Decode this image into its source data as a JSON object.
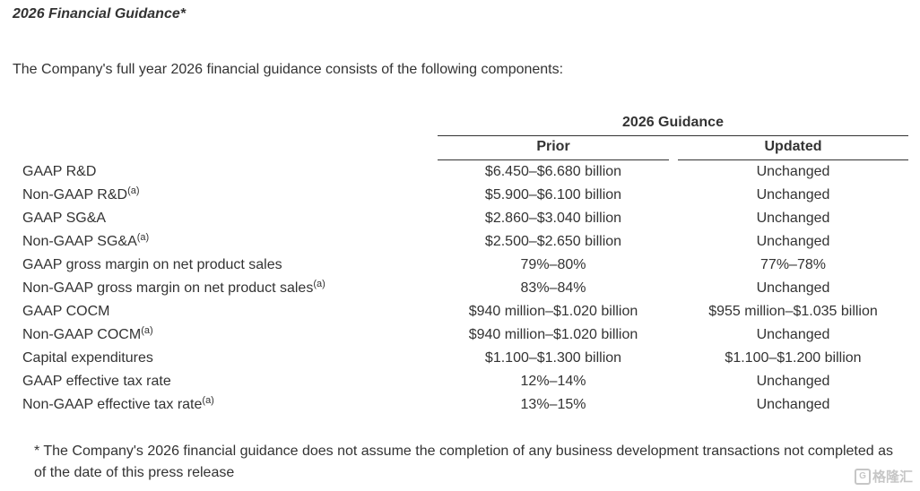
{
  "title": "2026 Financial Guidance*",
  "intro": "The Company's full year 2026 financial guidance consists of the following components:",
  "table": {
    "group_header": "2026 Guidance",
    "col_prior": "Prior",
    "col_updated": "Updated",
    "footnote_marker": "(a)",
    "rows": [
      {
        "label": "GAAP R&D",
        "note": "",
        "prior": "$6.450–$6.680 billion",
        "updated": "Unchanged"
      },
      {
        "label": "Non-GAAP R&D",
        "note": "(a)",
        "prior": "$5.900–$6.100 billion",
        "updated": "Unchanged"
      },
      {
        "label": "GAAP SG&A",
        "note": "",
        "prior": "$2.860–$3.040 billion",
        "updated": "Unchanged"
      },
      {
        "label": "Non-GAAP SG&A",
        "note": "(a)",
        "prior": "$2.500–$2.650 billion",
        "updated": "Unchanged"
      },
      {
        "label": "GAAP gross margin on net product sales",
        "note": "",
        "prior": "79%–80%",
        "updated": "77%–78%"
      },
      {
        "label": "Non-GAAP gross margin on net product sales",
        "note": "(a)",
        "prior": "83%–84%",
        "updated": "Unchanged"
      },
      {
        "label": "GAAP COCM",
        "note": "",
        "prior": "$940 million–$1.020 billion",
        "updated": "$955 million–$1.035 billion"
      },
      {
        "label": "Non-GAAP COCM",
        "note": "(a)",
        "prior": "$940 million–$1.020 billion",
        "updated": "Unchanged"
      },
      {
        "label": "Capital expenditures",
        "note": "",
        "prior": "$1.100–$1.300 billion",
        "updated": "$1.100–$1.200 billion"
      },
      {
        "label": "GAAP effective tax rate",
        "note": "",
        "prior": "12%–14%",
        "updated": "Unchanged"
      },
      {
        "label": "Non-GAAP effective tax rate",
        "note": "(a)",
        "prior": "13%–15%",
        "updated": "Unchanged"
      }
    ]
  },
  "footnote": "* The Company's 2026 financial guidance does not assume the completion of any business development transactions not completed as of the date of this press release",
  "watermark": {
    "icon": "G",
    "text": "格隆汇"
  }
}
